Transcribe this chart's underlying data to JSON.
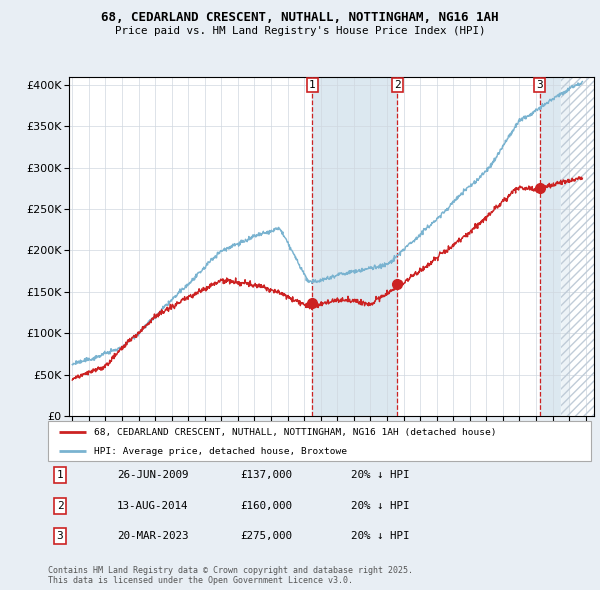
{
  "title": "68, CEDARLAND CRESCENT, NUTHALL, NOTTINGHAM, NG16 1AH",
  "subtitle": "Price paid vs. HM Land Registry's House Price Index (HPI)",
  "legend_house": "68, CEDARLAND CRESCENT, NUTHALL, NOTTINGHAM, NG16 1AH (detached house)",
  "legend_hpi": "HPI: Average price, detached house, Broxtowe",
  "footnote": "Contains HM Land Registry data © Crown copyright and database right 2025.\nThis data is licensed under the Open Government Licence v3.0.",
  "transactions": [
    {
      "label": "1",
      "date": "26-JUN-2009",
      "price": "£137,000",
      "note": "20% ↓ HPI"
    },
    {
      "label": "2",
      "date": "13-AUG-2014",
      "price": "£160,000",
      "note": "20% ↓ HPI"
    },
    {
      "label": "3",
      "date": "20-MAR-2023",
      "price": "£275,000",
      "note": "20% ↓ HPI"
    }
  ],
  "sale_dates": [
    2009.48,
    2014.62,
    2023.22
  ],
  "sale_prices": [
    137000,
    160000,
    275000
  ],
  "hpi_color": "#7ab3d0",
  "house_color": "#cc2222",
  "vline_color": "#cc2222",
  "background_color": "#e8eef4",
  "plot_bg": "#ffffff",
  "shade_color": "#dce8f0",
  "ylim": [
    0,
    410000
  ],
  "xlim_start": 1994.8,
  "xlim_end": 2026.5
}
